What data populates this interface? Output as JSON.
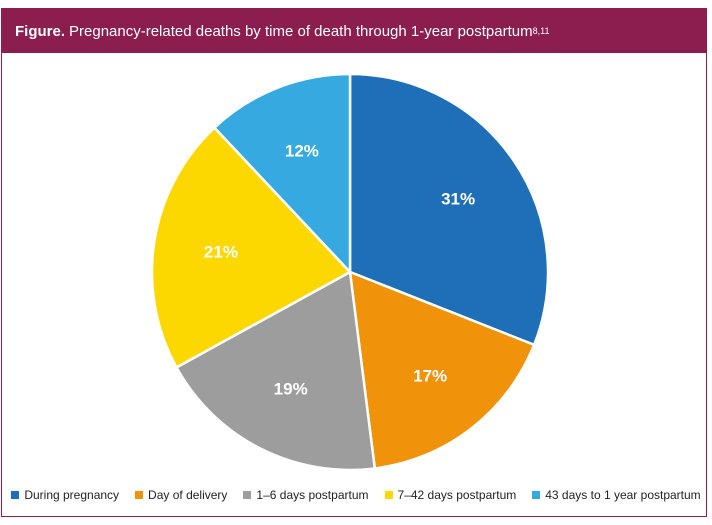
{
  "header": {
    "prefix": "Figure.",
    "title": "Pregnancy-related deaths by time of death through 1-year postpartum",
    "superscript": "8,11"
  },
  "chart_data": {
    "type": "pie",
    "title": "Pregnancy-related deaths by time of death through 1-year postpartum",
    "start": "12 o'clock, clockwise",
    "legend_position": "bottom",
    "slices": [
      {
        "label": "During pregnancy",
        "value": 31,
        "display": "31%",
        "color": "#1f6fb8"
      },
      {
        "label": "Day of delivery",
        "value": 17,
        "display": "17%",
        "color": "#f0920a"
      },
      {
        "label": "1–6 days postpartum",
        "value": 19,
        "display": "19%",
        "color": "#9d9d9d"
      },
      {
        "label": "7–42 days postpartum",
        "value": 21,
        "display": "21%",
        "color": "#fcd800"
      },
      {
        "label": "43 days to 1 year postpartum",
        "value": 12,
        "display": "12%",
        "color": "#36a9e1"
      }
    ]
  }
}
